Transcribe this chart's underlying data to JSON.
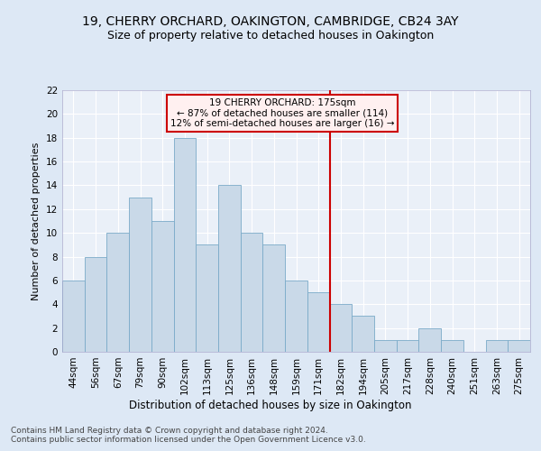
{
  "title1": "19, CHERRY ORCHARD, OAKINGTON, CAMBRIDGE, CB24 3AY",
  "title2": "Size of property relative to detached houses in Oakington",
  "xlabel": "Distribution of detached houses by size in Oakington",
  "ylabel": "Number of detached properties",
  "categories": [
    "44sqm",
    "56sqm",
    "67sqm",
    "79sqm",
    "90sqm",
    "102sqm",
    "113sqm",
    "125sqm",
    "136sqm",
    "148sqm",
    "159sqm",
    "171sqm",
    "182sqm",
    "194sqm",
    "205sqm",
    "217sqm",
    "228sqm",
    "240sqm",
    "251sqm",
    "263sqm",
    "275sqm"
  ],
  "values": [
    6,
    8,
    10,
    13,
    11,
    18,
    9,
    14,
    10,
    9,
    6,
    5,
    4,
    3,
    1,
    1,
    2,
    1,
    0,
    1,
    1
  ],
  "bar_color": "#c9d9e8",
  "bar_edge_color": "#7aaac8",
  "vline_pos": 11.5,
  "vline_color": "#cc0000",
  "annotation_text": "19 CHERRY ORCHARD: 175sqm\n← 87% of detached houses are smaller (114)\n12% of semi-detached houses are larger (16) →",
  "annotation_box_facecolor": "#fff0f0",
  "annotation_edge_color": "#cc0000",
  "ylim": [
    0,
    22
  ],
  "yticks": [
    0,
    2,
    4,
    6,
    8,
    10,
    12,
    14,
    16,
    18,
    20,
    22
  ],
  "background_color": "#dde8f5",
  "plot_background": "#eaf0f8",
  "footer": "Contains HM Land Registry data © Crown copyright and database right 2024.\nContains public sector information licensed under the Open Government Licence v3.0.",
  "title1_fontsize": 10,
  "title2_fontsize": 9,
  "xlabel_fontsize": 8.5,
  "ylabel_fontsize": 8,
  "tick_fontsize": 7.5,
  "footer_fontsize": 6.5,
  "annot_fontsize": 7.5
}
